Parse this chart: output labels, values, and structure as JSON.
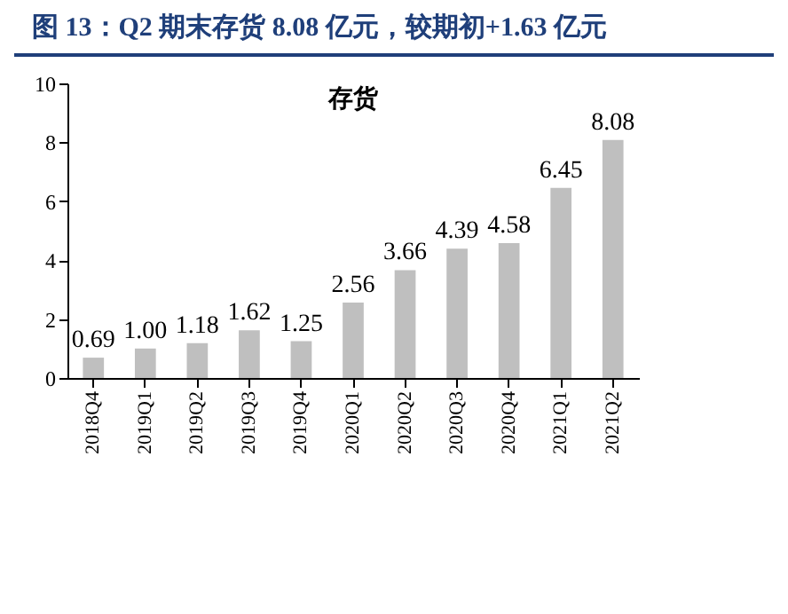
{
  "chart_data": {
    "type": "bar",
    "title": "图 13：Q2 期末存货 8.08 亿元，较期初+1.63 亿元",
    "subtitle": "存货",
    "categories": [
      "2018Q4",
      "2019Q1",
      "2019Q2",
      "2019Q3",
      "2019Q4",
      "2020Q1",
      "2020Q2",
      "2020Q3",
      "2020Q4",
      "2021Q1",
      "2021Q2"
    ],
    "values": [
      0.69,
      1.0,
      1.18,
      1.62,
      1.25,
      2.56,
      3.66,
      4.39,
      4.58,
      6.45,
      8.08
    ],
    "value_labels": [
      "0.69",
      "1.00",
      "1.18",
      "1.62",
      "1.25",
      "2.56",
      "3.66",
      "4.39",
      "4.58",
      "6.45",
      "8.08"
    ],
    "color": "#bfbfbf",
    "ylim": [
      0,
      10
    ],
    "yticks": [
      0,
      2,
      4,
      6,
      8,
      10
    ],
    "grid": false
  }
}
